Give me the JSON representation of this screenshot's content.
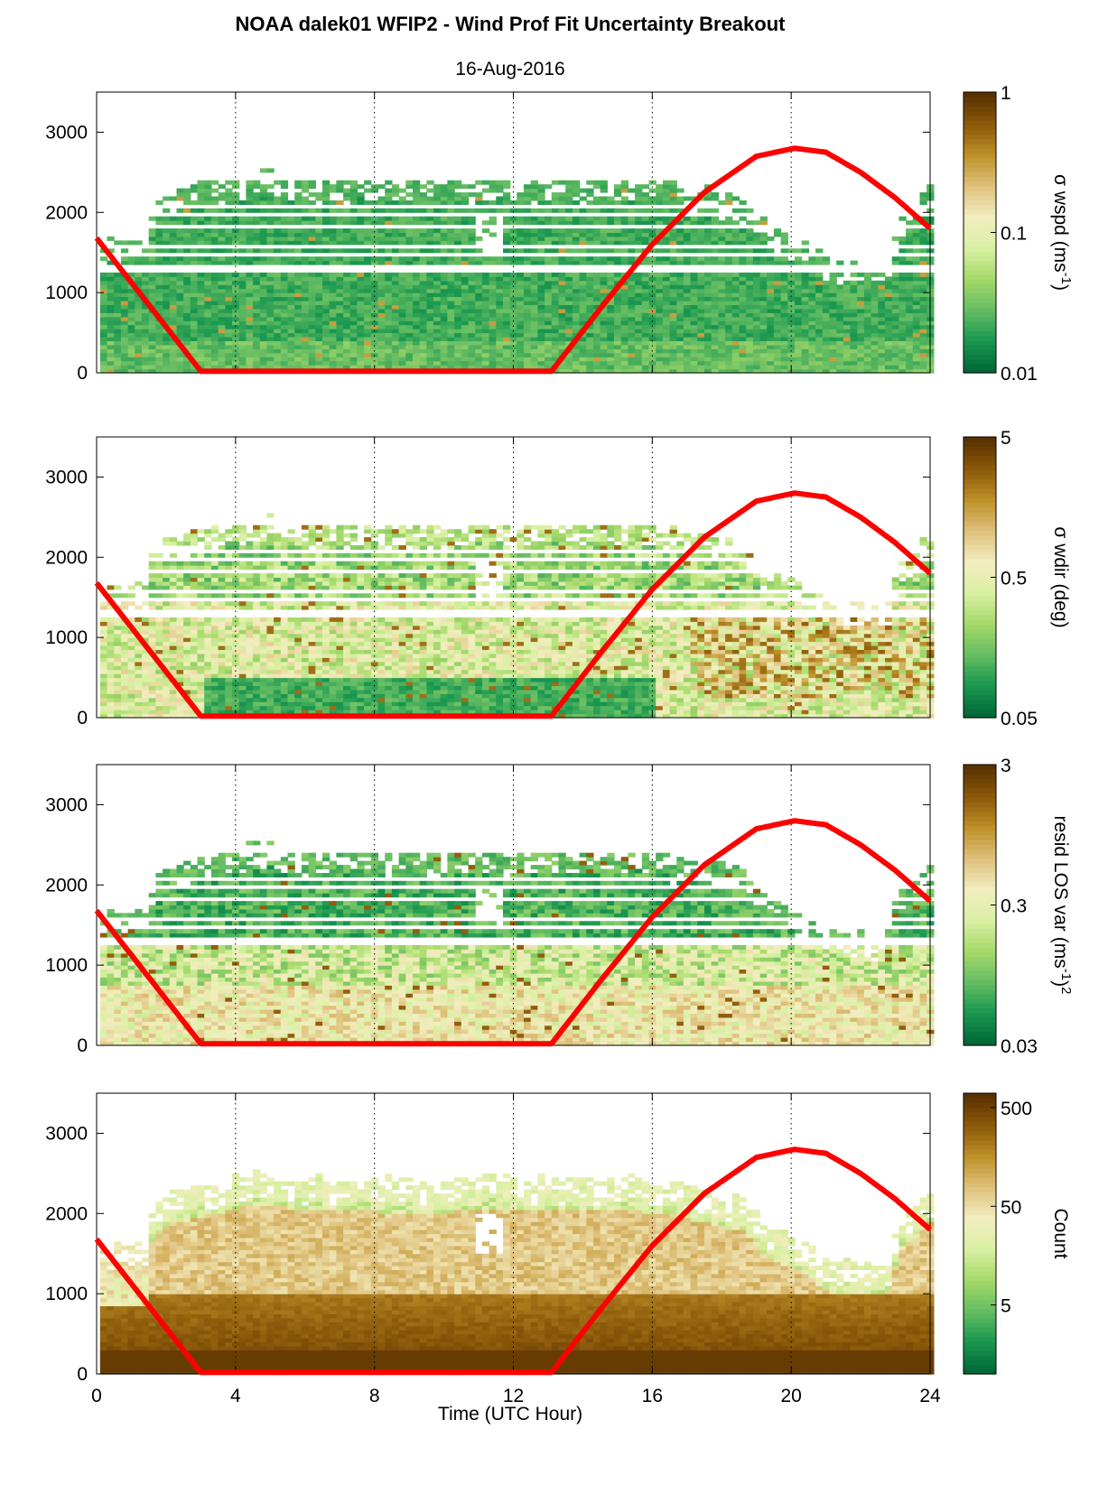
{
  "title": "NOAA dalek01 WFIP2 - Wind Prof Fit Uncertainty Breakout",
  "subtitle": "16-Aug-2016",
  "xlabel": "Time (UTC Hour)",
  "colors": {
    "sun_curve": "#ff0000",
    "colormap": [
      "#006837",
      "#1a9850",
      "#66bd63",
      "#a6d96a",
      "#d9f0a3",
      "#f3edc0",
      "#dfc27d",
      "#bf922b",
      "#8c5a0a",
      "#5a3100"
    ]
  },
  "chart_data": [
    {
      "type": "heatmap",
      "panel": "wspd",
      "xlim": [
        0,
        24
      ],
      "ylim": [
        0,
        3500
      ],
      "xticks": [
        0,
        4,
        8,
        12,
        16,
        20,
        24
      ],
      "yticks": [
        0,
        1000,
        2000,
        3000
      ],
      "grid_x": [
        4,
        8,
        12,
        16,
        20,
        24
      ],
      "colorbar": {
        "label_main": "σ wspd (ms",
        "label_sup": "-1",
        "label_end": ")",
        "scale": "log",
        "ticks": [
          "0.01",
          "0.1",
          "1"
        ],
        "range": [
          0.01,
          1
        ]
      },
      "sun_curve": {
        "x": [
          0,
          3,
          13.1,
          14.5,
          16,
          17.5,
          19,
          20.1,
          21,
          22,
          23,
          24
        ],
        "y": [
          1680,
          20,
          20,
          800,
          1600,
          2250,
          2700,
          2800,
          2750,
          2500,
          2180,
          1800
        ]
      }
    },
    {
      "type": "heatmap",
      "panel": "wdir",
      "xlim": [
        0,
        24
      ],
      "ylim": [
        0,
        3500
      ],
      "xticks": [
        0,
        4,
        8,
        12,
        16,
        20,
        24
      ],
      "yticks": [
        0,
        1000,
        2000,
        3000
      ],
      "grid_x": [
        4,
        8,
        12,
        16,
        20,
        24
      ],
      "colorbar": {
        "label_main": "σ wdir (deg)",
        "label_sup": "",
        "label_end": "",
        "scale": "log",
        "ticks": [
          "0.05",
          "0.5",
          "5"
        ],
        "range": [
          0.05,
          5
        ]
      },
      "sun_curve": {
        "x": [
          0,
          3,
          13.1,
          14.5,
          16,
          17.5,
          19,
          20.1,
          21,
          22,
          23,
          24
        ],
        "y": [
          1680,
          20,
          20,
          800,
          1600,
          2250,
          2700,
          2800,
          2750,
          2500,
          2180,
          1800
        ]
      }
    },
    {
      "type": "heatmap",
      "panel": "resid",
      "xlim": [
        0,
        24
      ],
      "ylim": [
        0,
        3500
      ],
      "xticks": [
        0,
        4,
        8,
        12,
        16,
        20,
        24
      ],
      "yticks": [
        0,
        1000,
        2000,
        3000
      ],
      "grid_x": [
        4,
        8,
        12,
        16,
        20,
        24
      ],
      "colorbar": {
        "label_main": "resid LOS var (ms",
        "label_sup": "-1",
        "label_end": ")",
        "label_sup2": "2",
        "scale": "log",
        "ticks": [
          "0.03",
          "0.3",
          "3"
        ],
        "range": [
          0.03,
          3
        ]
      },
      "sun_curve": {
        "x": [
          0,
          3,
          13.1,
          14.5,
          16,
          17.5,
          19,
          20.1,
          21,
          22,
          23,
          24
        ],
        "y": [
          1680,
          20,
          20,
          800,
          1600,
          2250,
          2700,
          2800,
          2750,
          2500,
          2180,
          1800
        ]
      }
    },
    {
      "type": "heatmap",
      "panel": "count",
      "xlim": [
        0,
        24
      ],
      "ylim": [
        0,
        3500
      ],
      "xticks": [
        0,
        4,
        8,
        12,
        16,
        20,
        24
      ],
      "yticks": [
        0,
        1000,
        2000,
        3000
      ],
      "grid_x": [
        4,
        8,
        12,
        16,
        20,
        24
      ],
      "colorbar": {
        "label_main": "Count",
        "label_sup": "",
        "label_end": "",
        "scale": "log",
        "ticks": [
          "5",
          "50",
          "500"
        ],
        "range": [
          1,
          700
        ]
      },
      "sun_curve": {
        "x": [
          0,
          3,
          13.1,
          14.5,
          16,
          17.5,
          19,
          20.1,
          21,
          22,
          23,
          24
        ],
        "y": [
          1680,
          20,
          20,
          800,
          1600,
          2250,
          2700,
          2800,
          2750,
          2500,
          2180,
          1800
        ]
      }
    }
  ]
}
